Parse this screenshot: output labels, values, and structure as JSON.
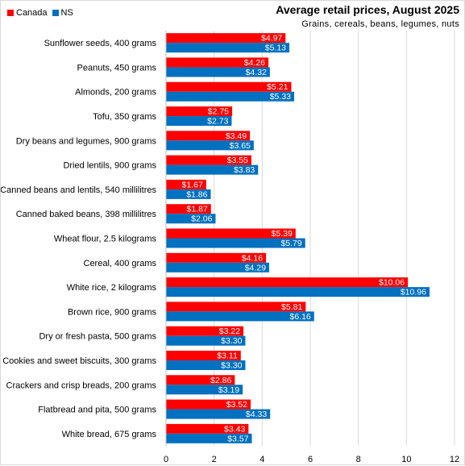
{
  "chart_data": {
    "type": "bar",
    "orientation": "horizontal",
    "title": "Average retail prices, August 2025",
    "subtitle": "Grains, cereals, beans, legumes, nuts",
    "categories": [
      "Sunflower seeds, 400 grams",
      "Peanuts, 450 grams",
      "Almonds, 200 grams",
      "Tofu, 350 grams",
      "Dry beans and legumes, 900 grams",
      "Dried lentils, 900 grams",
      "Canned beans and lentils, 540 millilitres",
      "Canned baked beans, 398 millilitres",
      "Wheat flour, 2.5 kilograms",
      "Cereal, 400 grams",
      "White rice, 2 kilograms",
      "Brown rice, 900 grams",
      "Dry or fresh pasta, 500 grams",
      "Cookies and sweet biscuits, 300 grams",
      "Crackers and crisp breads, 200 grams",
      "Flatbread and pita, 500 grams",
      "White bread, 675 grams"
    ],
    "series": [
      {
        "name": "Canada",
        "color": "#ff0000",
        "values": [
          4.97,
          4.26,
          5.21,
          2.75,
          3.49,
          3.55,
          1.67,
          1.87,
          5.39,
          4.16,
          10.06,
          5.81,
          3.22,
          3.11,
          2.86,
          3.52,
          3.43
        ],
        "labels": [
          "$4.97",
          "$4.26",
          "$5.21",
          "$2.75",
          "$3.49",
          "$3.55",
          "$1.67",
          "$1.87",
          "$5.39",
          "$4.16",
          "$10.06",
          "$5.81",
          "$3.22",
          "$3.11",
          "$2.86",
          "$3.52",
          "$3.43"
        ]
      },
      {
        "name": "NS",
        "color": "#0070c0",
        "values": [
          5.13,
          4.32,
          5.33,
          2.73,
          3.65,
          3.83,
          1.86,
          2.06,
          5.79,
          4.29,
          10.96,
          6.16,
          3.3,
          3.3,
          3.19,
          4.33,
          3.57
        ],
        "labels": [
          "$5.13",
          "$4.32",
          "$5.33",
          "$2.73",
          "$3.65",
          "$3.83",
          "$1.86",
          "$2.06",
          "$5.79",
          "$4.29",
          "$10.96",
          "$6.16",
          "$3.30",
          "$3.30",
          "$3.19",
          "$4.33",
          "$3.57"
        ]
      }
    ],
    "xlim": [
      0,
      12
    ],
    "xticks": [
      "0",
      "2",
      "4",
      "6",
      "8",
      "10",
      "12"
    ],
    "grid": true,
    "legend_position": "top-left",
    "colors": {
      "canada": "#ff0000",
      "ns": "#0070c0",
      "grid": "#d9d9d9"
    }
  }
}
